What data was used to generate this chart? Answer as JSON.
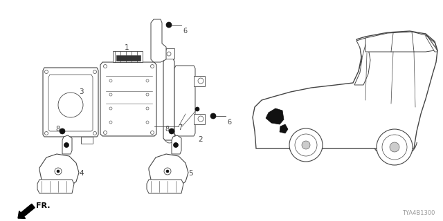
{
  "diagram_code": "TYA4B1300",
  "background_color": "#ffffff",
  "line_color": "#444444",
  "dark_color": "#111111",
  "fig_w": 6.4,
  "fig_h": 3.2,
  "dpi": 100
}
